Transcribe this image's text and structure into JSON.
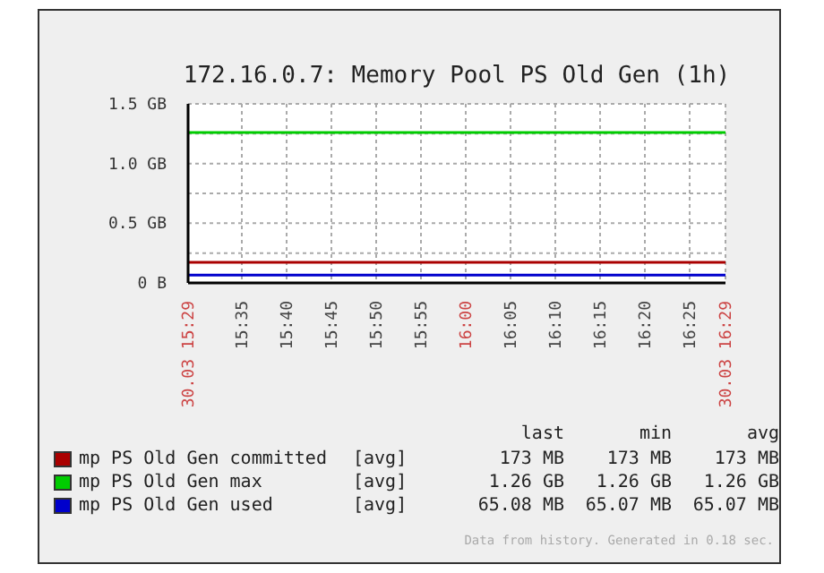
{
  "chart_data": {
    "type": "line",
    "title": "172.16.0.7: Memory Pool PS Old Gen (1h)",
    "x": [
      15.48333,
      16.48333
    ],
    "series": [
      {
        "name": "mp PS Old Gen committed",
        "color": "#aa0000",
        "values": [
          0.173,
          0.173
        ]
      },
      {
        "name": "mp PS Old Gen max",
        "color": "#00cc00",
        "values": [
          1.26,
          1.26
        ]
      },
      {
        "name": "mp PS Old Gen used",
        "color": "#0000cc",
        "values": [
          0.065,
          0.065
        ]
      }
    ],
    "xlim": [
      15.48333,
      16.48333
    ],
    "xticks": [
      {
        "value": 15.48333,
        "label": "30.03 15:29"
      },
      {
        "value": 15.58333,
        "label": "15:35"
      },
      {
        "value": 15.66667,
        "label": "15:40"
      },
      {
        "value": 15.75,
        "label": "15:45"
      },
      {
        "value": 15.83333,
        "label": "15:50"
      },
      {
        "value": 15.91667,
        "label": "15:55"
      },
      {
        "value": 16,
        "label": "16:00"
      },
      {
        "value": 16.08333,
        "label": "16:05"
      },
      {
        "value": 16.16667,
        "label": "16:10"
      },
      {
        "value": 16.25,
        "label": "16:15"
      },
      {
        "value": 16.33333,
        "label": "16:20"
      },
      {
        "value": 16.41667,
        "label": "16:25"
      },
      {
        "value": 16.48333,
        "label": "30.03 16:29"
      }
    ],
    "ylim": [
      0,
      1.5
    ],
    "yticks": [
      {
        "value": 0,
        "label": "0 B"
      },
      {
        "value": 0.25,
        "label": null
      },
      {
        "value": 0.5,
        "label": "0.5 GB"
      },
      {
        "value": 0.75,
        "label": null
      },
      {
        "value": 1,
        "label": "1.0 GB"
      },
      {
        "value": 1.25,
        "label": null
      },
      {
        "value": 1.5,
        "label": "1.5 GB"
      }
    ],
    "grid": true,
    "legend": "bottom",
    "annotations": [
      "last",
      "min",
      "avg",
      "[avg]",
      "173 MB",
      "173 MB",
      "173 MB",
      "[avg]",
      "1.26 GB",
      "1.26 GB",
      "1.26 GB",
      "[avg]",
      "65.08 MB",
      "65.07 MB",
      "65.07 MB",
      "Data from history. Generated in 0.18 sec."
    ]
  }
}
